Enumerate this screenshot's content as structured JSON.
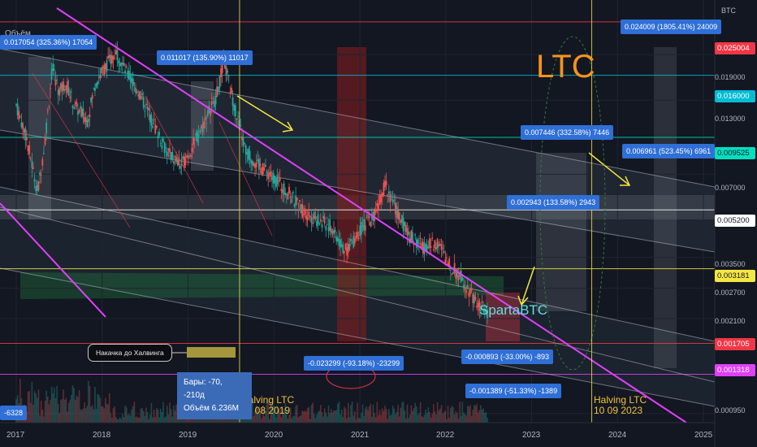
{
  "chart_data": {
    "type": "candlestick",
    "symbol_label": "LTC",
    "watermark": "SpartaBTC",
    "quote_label": "BTC",
    "volume_label": "Объём",
    "scale": "log",
    "ylim": [
      0.00088,
      0.03
    ],
    "x_ticks": [
      "2017",
      "2018",
      "2019",
      "2020",
      "2021",
      "2022",
      "2023",
      "2024",
      "2025"
    ],
    "y_ticks": [
      "0.019000",
      "0.013000",
      "0.007000",
      "0.003500",
      "0.002700",
      "0.002100",
      "0.000950"
    ],
    "price_tags": [
      {
        "value": "0.025004",
        "color": "#f23645",
        "text_color": "#ffffff"
      },
      {
        "value": "0.016000",
        "color": "#00bcd4",
        "text_color": "#ffffff"
      },
      {
        "value": "0.009525",
        "color": "#00e0c0",
        "text_color": "#131722"
      },
      {
        "value": "0.005200",
        "color": "#ffffff",
        "text_color": "#131722"
      },
      {
        "value": "0.003181",
        "color": "#f5e642",
        "text_color": "#131722"
      },
      {
        "value": "0.001705",
        "color": "#f23645",
        "text_color": "#ffffff"
      },
      {
        "value": "0.001318",
        "color": "#e040fb",
        "text_color": "#ffffff"
      }
    ],
    "measure_labels": [
      "0.017054 (325.36%) 17054",
      "0.011017 (135.90%) 11017",
      "0.024009 (1805.41%) 24009",
      "0.007446 (332.58%) 7446",
      "0.006961 (523.45%) 6961",
      "0.002943 (133.58%) 2943",
      "-0.023299 (-93.18%) -23299",
      "-0.000893 (-33.00%) -893",
      "-0.001389 (-51.33%) -1389",
      "-6328"
    ],
    "halvings": [
      {
        "line1": "Halving LTC",
        "line2": "05 08 2019"
      },
      {
        "line1": "Halving LTC",
        "line2": "10 09 2023"
      }
    ],
    "callout": "Накачка до Халвинга",
    "bars_stat": "Бары: -70, -210д",
    "volume_stat": "Объём 6.236M",
    "price_path": [
      [
        2017.0,
        0.0125
      ],
      [
        2017.12,
        0.0095
      ],
      [
        2017.25,
        0.006
      ],
      [
        2017.33,
        0.009
      ],
      [
        2017.42,
        0.017
      ],
      [
        2017.5,
        0.014
      ],
      [
        2017.58,
        0.015
      ],
      [
        2017.67,
        0.0125
      ],
      [
        2017.83,
        0.011
      ],
      [
        2017.92,
        0.015
      ],
      [
        2018.0,
        0.0165
      ],
      [
        2018.08,
        0.018
      ],
      [
        2018.17,
        0.0195
      ],
      [
        2018.25,
        0.017
      ],
      [
        2018.42,
        0.014
      ],
      [
        2018.58,
        0.011
      ],
      [
        2018.75,
        0.0085
      ],
      [
        2018.92,
        0.0075
      ],
      [
        2019.0,
        0.0082
      ],
      [
        2019.17,
        0.0105
      ],
      [
        2019.33,
        0.0135
      ],
      [
        2019.42,
        0.018
      ],
      [
        2019.5,
        0.014
      ],
      [
        2019.58,
        0.011
      ],
      [
        2019.67,
        0.0085
      ],
      [
        2019.83,
        0.0075
      ],
      [
        2020.0,
        0.0068
      ],
      [
        2020.17,
        0.006
      ],
      [
        2020.33,
        0.0052
      ],
      [
        2020.5,
        0.0048
      ],
      [
        2020.67,
        0.0045
      ],
      [
        2020.83,
        0.0037
      ],
      [
        2020.92,
        0.004
      ],
      [
        2021.0,
        0.0044
      ],
      [
        2021.17,
        0.005
      ],
      [
        2021.3,
        0.0065
      ],
      [
        2021.42,
        0.0052
      ],
      [
        2021.58,
        0.0042
      ],
      [
        2021.75,
        0.0038
      ],
      [
        2021.92,
        0.004
      ],
      [
        2022.0,
        0.0034
      ],
      [
        2022.17,
        0.003
      ],
      [
        2022.33,
        0.0025
      ],
      [
        2022.42,
        0.0023
      ],
      [
        2022.5,
        0.0021
      ]
    ]
  },
  "annotations": [
    {
      "type": "vline",
      "x": 2019.6
    },
    {
      "type": "vline",
      "x": 2023.7
    }
  ]
}
